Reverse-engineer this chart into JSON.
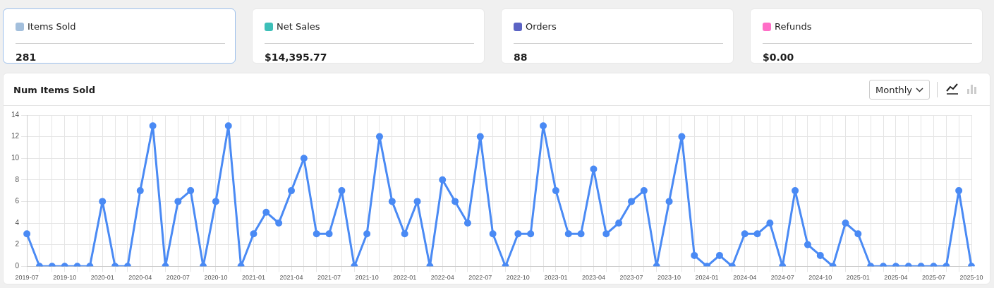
{
  "chart_data": [
    {
      "type": "other",
      "categories": [
        "Items Sold",
        "Net Sales",
        "Orders",
        "Refunds"
      ],
      "value_labels": [
        "281",
        "$14,395.77",
        "88",
        "$0.00"
      ],
      "colors": [
        "#a3bfdc",
        "#3dbfb8",
        "#5b63c4",
        "#ff6ec7"
      ]
    },
    {
      "type": "line",
      "title": "Num Items Sold",
      "annotations": [
        "Monthly"
      ],
      "categories": [
        "2019-07",
        null,
        null,
        "2019-10",
        null,
        null,
        "2020-01",
        null,
        null,
        "2020-04",
        null,
        null,
        "2020-07",
        null,
        null,
        "2020-10",
        null,
        null,
        "2021-01",
        null,
        null,
        "2021-04",
        null,
        null,
        "2021-07",
        null,
        null,
        "2021-10",
        null,
        null,
        "2022-01",
        null,
        null,
        "2022-04",
        null,
        null,
        "2022-07",
        null,
        null,
        "2022-10",
        null,
        null,
        "2023-01",
        null,
        null,
        "2023-04",
        null,
        null,
        "2023-07",
        null,
        null,
        "2023-10",
        null,
        null,
        "2024-01",
        null,
        null,
        "2024-04",
        null,
        null,
        "2024-07",
        null,
        null,
        "2024-10",
        null,
        null,
        "2025-01",
        null,
        null,
        "2025-04",
        null,
        null,
        "2025-07",
        null,
        null,
        "2025-10"
      ],
      "series": [
        {
          "color": "#4a8af4",
          "values": [
            3,
            0,
            0,
            0,
            0,
            0,
            6,
            0,
            0,
            7,
            13,
            0,
            6,
            7,
            0,
            6,
            13,
            0,
            3,
            5,
            4,
            7,
            10,
            3,
            3,
            7,
            0,
            3,
            12,
            6,
            3,
            6,
            0,
            8,
            6,
            4,
            12,
            3,
            0,
            3,
            3,
            13,
            7,
            3,
            3,
            9,
            3,
            4,
            6,
            7,
            0,
            6,
            12,
            1,
            0,
            1,
            0,
            3,
            3,
            4,
            0,
            7,
            2,
            1,
            0,
            4,
            3,
            0,
            0,
            0,
            0,
            0,
            0,
            0,
            7,
            0
          ]
        }
      ],
      "ylim": [
        0,
        14
      ],
      "yticks": [
        0,
        2,
        4,
        6,
        8,
        10,
        12,
        14
      ],
      "grid": true,
      "legend": false,
      "marker": "circle",
      "line_style": "solid"
    }
  ]
}
